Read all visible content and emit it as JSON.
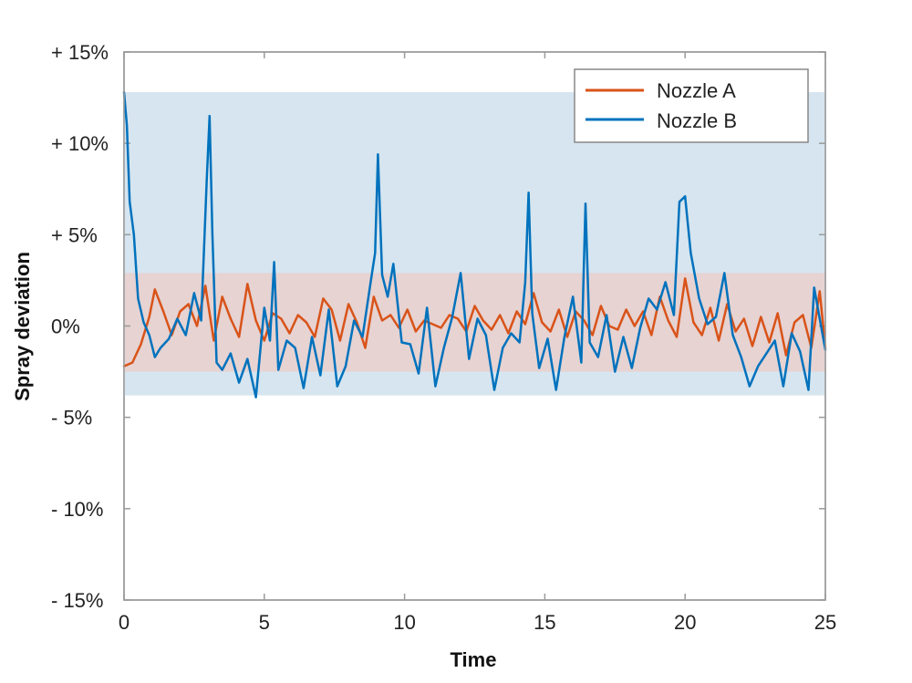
{
  "chart_data": {
    "type": "line",
    "title": "",
    "xlabel": "Time",
    "ylabel": "Spray deviation",
    "xlim": [
      0,
      25
    ],
    "ylim": [
      -15,
      15
    ],
    "x_ticks": [
      0,
      5,
      10,
      15,
      20,
      25
    ],
    "x_tick_labels": [
      "0",
      "5",
      "10",
      "15",
      "20",
      "25"
    ],
    "y_ticks": [
      15,
      10,
      5,
      0,
      -5,
      -10,
      -15
    ],
    "y_tick_labels": [
      "+ 15%",
      "+ 10%",
      "+ 5%",
      "0%",
      "- 5%",
      "- 10%",
      "- 15%"
    ],
    "grid": false,
    "legend_position": "top-right",
    "bands": [
      {
        "series": "Nozzle B",
        "y0": -3.8,
        "y1": 12.8,
        "color": "#d6e5ef"
      },
      {
        "series": "Nozzle A",
        "y0": -2.5,
        "y1": 2.9,
        "color": "#e6d3d2"
      }
    ],
    "series": [
      {
        "name": "Nozzle A",
        "color": "#d95319",
        "x": [
          0,
          0.3,
          0.6,
          0.9,
          1.1,
          1.4,
          1.7,
          2.0,
          2.3,
          2.6,
          2.9,
          3.2,
          3.5,
          3.8,
          4.1,
          4.4,
          4.7,
          5.0,
          5.3,
          5.6,
          5.9,
          6.2,
          6.5,
          6.8,
          7.1,
          7.4,
          7.7,
          8.0,
          8.3,
          8.6,
          8.9,
          9.2,
          9.5,
          9.8,
          10.1,
          10.4,
          10.7,
          11.0,
          11.3,
          11.6,
          11.9,
          12.2,
          12.5,
          12.8,
          13.1,
          13.4,
          13.7,
          14.0,
          14.3,
          14.6,
          14.9,
          15.2,
          15.5,
          15.8,
          16.1,
          16.4,
          16.7,
          17.0,
          17.3,
          17.6,
          17.9,
          18.2,
          18.5,
          18.8,
          19.1,
          19.4,
          19.7,
          20.0,
          20.3,
          20.6,
          20.9,
          21.2,
          21.5,
          21.8,
          22.1,
          22.4,
          22.7,
          23.0,
          23.3,
          23.6,
          23.9,
          24.2,
          24.5,
          24.8,
          25.0
        ],
        "y": [
          -2.2,
          -2.0,
          -1.0,
          0.5,
          2.0,
          0.8,
          -0.5,
          0.8,
          1.2,
          0.0,
          2.2,
          -0.8,
          1.6,
          0.4,
          -0.6,
          2.3,
          0.3,
          -0.8,
          0.7,
          0.4,
          -0.4,
          0.6,
          0.2,
          -0.6,
          1.5,
          0.9,
          -0.8,
          1.2,
          0.2,
          -1.2,
          1.6,
          0.3,
          0.6,
          -0.1,
          0.9,
          -0.3,
          0.3,
          0.1,
          -0.1,
          0.6,
          0.4,
          -0.3,
          1.1,
          0.3,
          -0.2,
          0.6,
          -0.4,
          0.8,
          0.1,
          1.8,
          0.2,
          -0.3,
          0.9,
          -0.6,
          0.8,
          0.3,
          -0.5,
          1.1,
          0.0,
          -0.2,
          0.9,
          0.0,
          0.8,
          -0.5,
          1.6,
          0.3,
          -0.6,
          2.6,
          0.2,
          -0.5,
          1.0,
          -0.8,
          1.2,
          -0.3,
          0.4,
          -1.1,
          0.5,
          -0.9,
          0.7,
          -1.6,
          0.2,
          0.6,
          -1.2,
          1.9,
          -1.2
        ]
      },
      {
        "name": "Nozzle B",
        "color": "#0072bd",
        "x": [
          0,
          0.1,
          0.2,
          0.35,
          0.5,
          0.7,
          0.9,
          1.1,
          1.3,
          1.6,
          1.9,
          2.2,
          2.5,
          2.75,
          2.95,
          3.05,
          3.15,
          3.3,
          3.5,
          3.8,
          4.1,
          4.4,
          4.7,
          5.0,
          5.2,
          5.35,
          5.5,
          5.8,
          6.1,
          6.4,
          6.7,
          7.0,
          7.3,
          7.6,
          7.9,
          8.2,
          8.5,
          8.8,
          8.95,
          9.05,
          9.2,
          9.4,
          9.6,
          9.9,
          10.2,
          10.5,
          10.8,
          11.1,
          11.4,
          11.7,
          12.0,
          12.3,
          12.6,
          12.9,
          13.2,
          13.5,
          13.8,
          14.1,
          14.3,
          14.42,
          14.55,
          14.8,
          15.1,
          15.4,
          15.7,
          16.0,
          16.3,
          16.45,
          16.6,
          16.9,
          17.2,
          17.5,
          17.8,
          18.1,
          18.4,
          18.7,
          19.0,
          19.3,
          19.6,
          19.8,
          20.0,
          20.2,
          20.5,
          20.8,
          21.1,
          21.4,
          21.7,
          22.0,
          22.3,
          22.6,
          22.9,
          23.2,
          23.5,
          23.8,
          24.1,
          24.4,
          24.6,
          24.8,
          25.0
        ],
        "y": [
          12.8,
          11.0,
          6.8,
          5.0,
          1.5,
          0.2,
          -0.5,
          -1.7,
          -1.2,
          -0.7,
          0.4,
          -0.5,
          1.8,
          0.3,
          8.0,
          11.5,
          5.0,
          -2.0,
          -2.4,
          -1.5,
          -3.1,
          -1.8,
          -3.9,
          1.0,
          -0.8,
          3.5,
          -2.4,
          -0.8,
          -1.2,
          -3.4,
          -0.6,
          -2.7,
          0.9,
          -3.3,
          -2.2,
          0.3,
          -0.6,
          2.5,
          4.0,
          9.4,
          2.8,
          1.6,
          3.4,
          -0.9,
          -1.0,
          -2.6,
          1.0,
          -3.3,
          -1.2,
          0.5,
          2.9,
          -1.8,
          0.4,
          -0.5,
          -3.5,
          -1.2,
          -0.4,
          -0.9,
          2.4,
          7.3,
          0.7,
          -2.3,
          -0.7,
          -3.5,
          -0.6,
          1.6,
          -2.0,
          6.7,
          -0.9,
          -1.7,
          0.6,
          -2.5,
          -0.6,
          -2.3,
          -0.1,
          1.5,
          0.9,
          2.4,
          0.6,
          6.8,
          7.1,
          4.0,
          1.5,
          0.1,
          0.5,
          2.9,
          -0.5,
          -1.7,
          -3.3,
          -2.2,
          -1.5,
          -0.8,
          -3.3,
          -0.4,
          -1.4,
          -3.5,
          2.1,
          0.4,
          -1.3
        ]
      }
    ]
  }
}
